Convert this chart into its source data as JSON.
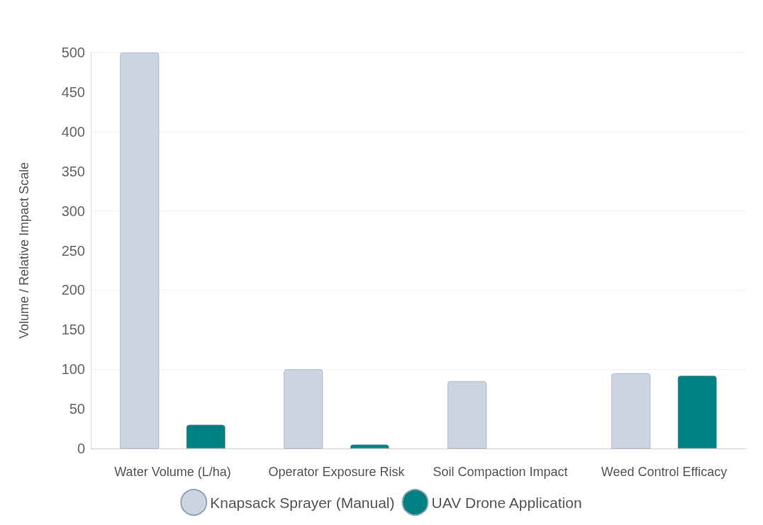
{
  "chart_data": {
    "type": "bar",
    "ylabel": "Volume / Relative Impact Scale",
    "categories": [
      "Water Volume (L/ha)",
      "Operator Exposure Risk",
      "Soil Compaction Impact",
      "Weed Control Efficacy"
    ],
    "series": [
      {
        "name": "Knapsack Sprayer (Manual)",
        "color": "#cbd5e1",
        "values": [
          500,
          100,
          85,
          95
        ]
      },
      {
        "name": "UAV Drone Application",
        "color": "#008080",
        "values": [
          30,
          5,
          0,
          92
        ]
      }
    ],
    "ylim": [
      0,
      500
    ],
    "yticks": [
      0,
      50,
      100,
      150,
      200,
      250,
      300,
      350,
      400,
      450,
      500
    ],
    "grid": "y",
    "legend": "bottom"
  }
}
